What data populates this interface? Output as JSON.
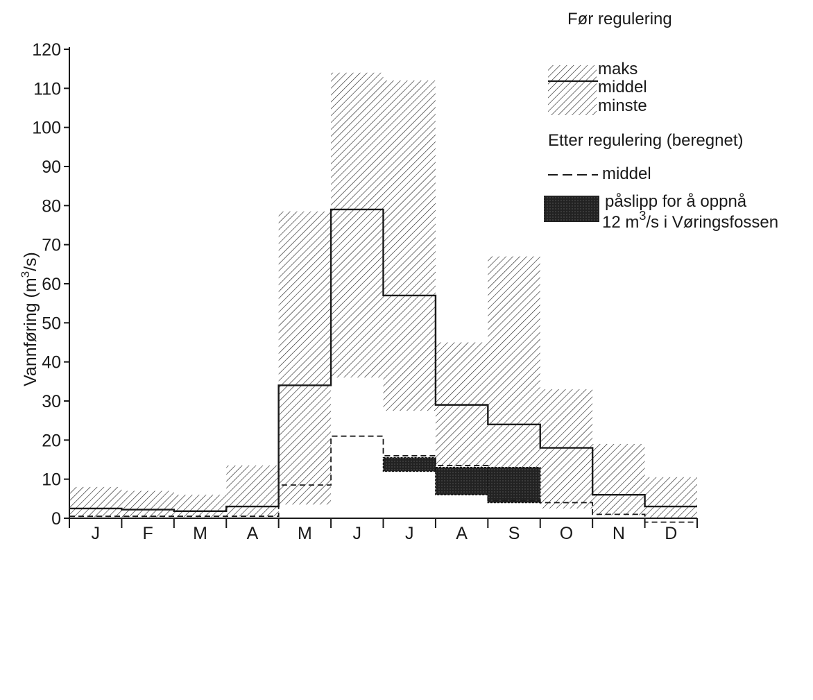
{
  "chart_data": {
    "type": "bar",
    "title": "",
    "xlabel": "",
    "ylabel": "Vannføring (m³/s)",
    "ylabel_parts": {
      "main": "Vannføring (m",
      "sup": "3",
      "end": "/s)"
    },
    "ylim": [
      0,
      120
    ],
    "yticks": [
      "0",
      "10",
      "20",
      "30",
      "40",
      "50",
      "60",
      "70",
      "80",
      "90",
      "100",
      "110",
      "120"
    ],
    "categories": [
      "J",
      "F",
      "M",
      "A",
      "M",
      "J",
      "J",
      "A",
      "S",
      "O",
      "N",
      "D"
    ],
    "grid": false,
    "series": [
      {
        "name": "maks",
        "values": [
          8,
          7,
          6,
          13.5,
          78.5,
          114,
          112,
          45,
          67,
          33,
          19,
          10.5
        ]
      },
      {
        "name": "middel",
        "values": [
          2.5,
          2.2,
          1.8,
          3,
          34,
          79,
          57,
          29,
          24,
          18,
          6,
          3
        ]
      },
      {
        "name": "minste",
        "values": [
          0.3,
          0.3,
          0.3,
          0.5,
          3.5,
          36,
          27.5,
          12.5,
          7,
          2.5,
          0.8,
          -0.5
        ]
      },
      {
        "name": "middel",
        "values": [
          0.5,
          0.5,
          0.5,
          0.5,
          8.5,
          21,
          16,
          13.5,
          4.5,
          4,
          1,
          -1
        ]
      },
      {
        "name": "påslipp for å oppnå 12 m³/s i Vøringsfossen",
        "values": [
          null,
          null,
          null,
          null,
          null,
          null,
          [
            12,
            15.5
          ],
          [
            6,
            13
          ],
          [
            4,
            13
          ],
          null,
          null,
          null
        ]
      }
    ],
    "legend": {
      "position": "top-right",
      "before_heading": "Før regulering",
      "before_items": [
        "maks",
        "middel",
        "minste"
      ],
      "after_heading": "Etter regulering (beregnet)",
      "after_mean": "middel",
      "release_line1": "påslipp for å oppnå",
      "release_line2_pre": "12 m",
      "release_line2_sup": "3",
      "release_line2_post": "/s i Vøringsfossen"
    }
  },
  "colors": {
    "ink": "#1a1a1a",
    "hatch": "#2a2a2a",
    "release_fill": "#262626"
  }
}
